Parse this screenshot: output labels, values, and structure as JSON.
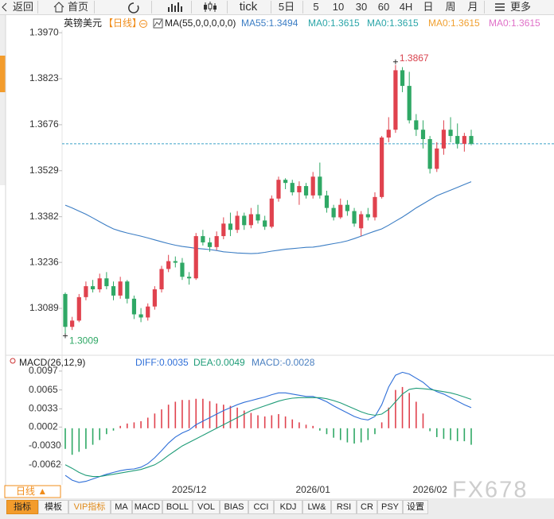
{
  "toolbar": {
    "items": [
      "返回",
      "首页",
      "tick",
      "5日",
      "5",
      "10",
      "30",
      "60",
      "4H",
      "日",
      "周",
      "月",
      "更多"
    ]
  },
  "header": {
    "symbol": "英镑美元",
    "period": "【日线】",
    "indicator": "MA(55,0,0,0,0,0)",
    "ma_values": [
      {
        "text": "MA55:1.3494",
        "color": "#3b7dc4"
      },
      {
        "text": "MA0:1.3615",
        "color": "#2aa5a8"
      },
      {
        "text": "MA0:1.3615",
        "color": "#2aa5a8"
      },
      {
        "text": "MA0:1.3615",
        "color": "#f0a030"
      },
      {
        "text": "MA0:1.3615",
        "color": "#e070c8"
      }
    ]
  },
  "chart_data": [
    {
      "type": "candlestick",
      "categories": [
        null,
        null,
        null,
        null,
        null,
        null,
        null,
        null,
        null,
        null,
        null,
        null,
        null,
        null,
        null,
        null,
        null,
        null,
        "2025/12",
        null,
        null,
        null,
        null,
        null,
        null,
        null,
        null,
        null,
        null,
        null,
        null,
        null,
        null,
        null,
        null,
        null,
        "2026/01",
        null,
        null,
        null,
        null,
        null,
        null,
        null,
        null,
        null,
        null,
        null,
        null,
        null,
        null,
        null,
        null,
        "2026/02",
        null,
        null,
        null,
        null,
        null,
        null
      ],
      "open": [
        1.3135,
        1.303,
        1.305,
        1.3125,
        1.316,
        1.315,
        1.3185,
        1.316,
        1.313,
        1.3175,
        1.312,
        1.307,
        1.306,
        1.3095,
        1.315,
        1.3215,
        1.324,
        1.3235,
        1.319,
        1.3185,
        1.332,
        1.33,
        1.3285,
        1.332,
        1.336,
        1.334,
        1.3385,
        1.3355,
        1.339,
        1.337,
        1.335,
        1.344,
        1.35,
        1.349,
        1.346,
        1.348,
        1.345,
        1.351,
        1.345,
        1.341,
        1.338,
        1.342,
        1.34,
        1.3345,
        1.339,
        1.338,
        1.3445,
        1.3635,
        1.366,
        1.385,
        1.38,
        1.369,
        1.366,
        1.363,
        1.3535,
        1.36,
        1.366,
        1.364,
        1.3615,
        1.364
      ],
      "high": [
        1.314,
        1.3062,
        1.3135,
        1.3175,
        1.318,
        1.32,
        1.3205,
        1.3175,
        1.319,
        1.318,
        1.313,
        1.309,
        1.3105,
        1.316,
        1.3225,
        1.326,
        1.3255,
        1.325,
        1.3205,
        1.333,
        1.334,
        1.3315,
        1.3335,
        1.338,
        1.3395,
        1.34,
        1.3395,
        1.341,
        1.342,
        1.3385,
        1.345,
        1.351,
        1.3505,
        1.35,
        1.3495,
        1.349,
        1.3525,
        1.3555,
        1.3465,
        1.342,
        1.344,
        1.3435,
        1.341,
        1.34,
        1.341,
        1.346,
        1.364,
        1.37,
        1.3867,
        1.386,
        1.3845,
        1.371,
        1.369,
        1.364,
        1.362,
        1.369,
        1.37,
        1.368,
        1.365,
        1.366
      ],
      "low": [
        1.3009,
        1.302,
        1.3045,
        1.3115,
        1.314,
        1.314,
        1.315,
        1.3115,
        1.312,
        1.3105,
        1.3055,
        1.3045,
        1.305,
        1.3085,
        1.314,
        1.3205,
        1.322,
        1.318,
        1.3165,
        1.318,
        1.329,
        1.327,
        1.3275,
        1.331,
        1.332,
        1.333,
        1.334,
        1.3345,
        1.336,
        1.334,
        1.3345,
        1.343,
        1.347,
        1.345,
        1.342,
        1.344,
        1.344,
        1.344,
        1.3395,
        1.337,
        1.3375,
        1.3385,
        1.335,
        1.332,
        1.337,
        1.337,
        1.344,
        1.362,
        1.365,
        1.378,
        1.368,
        1.364,
        1.36,
        1.352,
        1.3525,
        1.358,
        1.362,
        1.36,
        1.359,
        1.361
      ],
      "close": [
        1.303,
        1.305,
        1.3125,
        1.316,
        1.315,
        1.3185,
        1.316,
        1.313,
        1.3175,
        1.312,
        1.307,
        1.306,
        1.3095,
        1.315,
        1.3215,
        1.324,
        1.3235,
        1.319,
        1.3185,
        1.332,
        1.33,
        1.3285,
        1.332,
        1.336,
        1.334,
        1.3385,
        1.3355,
        1.339,
        1.337,
        1.335,
        1.344,
        1.35,
        1.349,
        1.346,
        1.348,
        1.345,
        1.351,
        1.345,
        1.341,
        1.338,
        1.342,
        1.34,
        1.336,
        1.339,
        1.338,
        1.3445,
        1.3635,
        1.366,
        1.385,
        1.38,
        1.369,
        1.366,
        1.363,
        1.3535,
        1.36,
        1.366,
        1.364,
        1.3615,
        1.364,
        1.3615
      ],
      "up_color": "#e0424e",
      "down_color": "#2fa865",
      "series": [
        {
          "color": "#3b7dc4",
          "values": [
            1.3419,
            1.341,
            1.34,
            1.339,
            1.3378,
            1.3366,
            1.3354,
            1.3343,
            1.3336,
            1.333,
            1.3325,
            1.332,
            1.3314,
            1.3308,
            1.3302,
            1.3296,
            1.3291,
            1.3287,
            1.3284,
            1.3281,
            1.3279,
            1.3277,
            1.3274,
            1.327,
            1.3268,
            1.3266,
            1.3265,
            1.3264,
            1.3265,
            1.3268,
            1.3272,
            1.3275,
            1.3278,
            1.328,
            1.3282,
            1.3284,
            1.3285,
            1.3288,
            1.3292,
            1.3296,
            1.33,
            1.3305,
            1.3312,
            1.332,
            1.3328,
            1.3336,
            1.3343,
            1.3355,
            1.3368,
            1.3381,
            1.3395,
            1.341,
            1.3423,
            1.3436,
            1.3449,
            1.3458,
            1.3467,
            1.3476,
            1.3485,
            1.3494
          ]
        }
      ],
      "ylim": [
        1.2957,
        1.3978
      ],
      "yticks": [
        {
          "value": 1.397,
          "label": "1.3970"
        },
        1.3823,
        1.3676,
        1.3529,
        1.3382,
        1.3236,
        1.3089
      ],
      "last_price": 1.3615,
      "last_price_color": "#3aa0c8",
      "high_label": "1.3867",
      "low_label": "1.3009"
    },
    {
      "type": "macd",
      "title": "MACD(26,12,9)",
      "legend": [
        {
          "text": "DIFF:0.0035",
          "color": "#2f6fd8"
        },
        {
          "text": "DEA:0.0049",
          "color": "#1f9c78"
        },
        {
          "text": "MACD:-0.0028",
          "color": "#4a7fc0"
        }
      ],
      "histogram": {
        "up_color": "#e0424e",
        "down_color": "#2fa865",
        "values": [
          -0.0035,
          -0.0045,
          -0.004,
          -0.0035,
          -0.0028,
          -0.002,
          -0.001,
          -0.0004,
          0.0004,
          0.0008,
          0.001,
          0.0012,
          0.0018,
          0.0025,
          0.0032,
          0.004,
          0.0045,
          0.0048,
          0.0048,
          0.005,
          0.005,
          0.0046,
          0.0042,
          0.004,
          0.0038,
          0.0035,
          0.003,
          0.0026,
          0.0022,
          0.002,
          0.0022,
          0.0024,
          0.002,
          0.0015,
          0.001,
          0.0006,
          0.0004,
          -0.0004,
          -0.001,
          -0.0016,
          -0.002,
          -0.0024,
          -0.0026,
          -0.0024,
          -0.002,
          -0.001,
          0.001,
          0.0035,
          0.0065,
          0.007,
          0.006,
          0.0045,
          0.0025,
          -0.0005,
          -0.0015,
          -0.0018,
          -0.002,
          -0.0022,
          -0.0022,
          -0.0028
        ]
      },
      "series": [
        {
          "color": "#2f6fd8",
          "values": [
            -0.008,
            -0.0088,
            -0.0092,
            -0.009,
            -0.0086,
            -0.0082,
            -0.0078,
            -0.0075,
            -0.0072,
            -0.007,
            -0.0069,
            -0.0066,
            -0.006,
            -0.005,
            -0.0038,
            -0.0025,
            -0.0015,
            -0.0008,
            -0.0003,
            0.0006,
            0.0012,
            0.0018,
            0.0024,
            0.003,
            0.0035,
            0.004,
            0.0044,
            0.0047,
            0.005,
            0.0053,
            0.0057,
            0.006,
            0.006,
            0.0058,
            0.0056,
            0.0054,
            0.0054,
            0.005,
            0.0045,
            0.0038,
            0.0032,
            0.0026,
            0.002,
            0.0016,
            0.0014,
            0.002,
            0.004,
            0.007,
            0.009,
            0.0095,
            0.0092,
            0.0085,
            0.0078,
            0.0068,
            0.0062,
            0.0058,
            0.0052,
            0.0046,
            0.004,
            0.0035
          ]
        },
        {
          "color": "#1f9c78",
          "values": [
            -0.0062,
            -0.0068,
            -0.0075,
            -0.008,
            -0.0082,
            -0.0082,
            -0.008,
            -0.0078,
            -0.0076,
            -0.0074,
            -0.0072,
            -0.007,
            -0.0066,
            -0.0062,
            -0.0055,
            -0.0046,
            -0.0038,
            -0.003,
            -0.0024,
            -0.0018,
            -0.0012,
            -0.0006,
            0.0,
            0.0006,
            0.0012,
            0.0018,
            0.0024,
            0.003,
            0.0034,
            0.0038,
            0.0042,
            0.0046,
            0.0049,
            0.0051,
            0.0052,
            0.0052,
            0.0052,
            0.0052,
            0.005,
            0.0047,
            0.0043,
            0.0038,
            0.0033,
            0.0028,
            0.0024,
            0.0022,
            0.0024,
            0.0032,
            0.0045,
            0.0058,
            0.0066,
            0.0068,
            0.0067,
            0.0066,
            0.0064,
            0.0062,
            0.006,
            0.0057,
            0.0053,
            0.0049
          ]
        }
      ],
      "ylim": [
        -0.0096,
        0.0109
      ],
      "yticks": [
        0.0097,
        0.0065,
        0.0033,
        0.0002,
        {
          "value": -0.003,
          "label": "-0.0030"
        },
        -0.0062
      ]
    }
  ],
  "footer": {
    "period": "日线 ▲",
    "tabs": [
      "指标",
      "模板",
      "VIP指标",
      "MA",
      "MACD",
      "BOLL",
      "VOL",
      "BIAS",
      "CCI",
      "KDJ",
      "LW&",
      "RSI",
      "CR",
      "PSY",
      "设置"
    ],
    "watermark": "FX678"
  }
}
